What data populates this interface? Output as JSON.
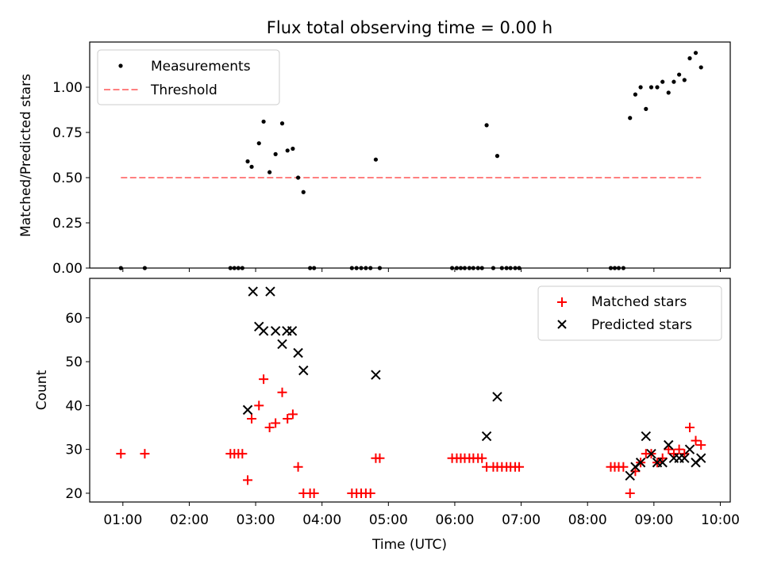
{
  "figure": {
    "title": "Flux total observing time = 0.00 h"
  },
  "colors": {
    "measurement": "#000000",
    "threshold": "#ff8080",
    "matched": "#ff0000",
    "predicted": "#000000"
  },
  "chart_data": [
    {
      "type": "scatter",
      "panel": "top",
      "ylabel": "Matched/Predicted stars",
      "xlim": [
        0.5,
        10.15
      ],
      "ylim": [
        0,
        1.25
      ],
      "yticks": [
        0,
        0.25,
        0.5,
        0.75,
        1.0
      ],
      "ytick_labels": [
        "0.00",
        "0.25",
        "0.50",
        "0.75",
        "1.00"
      ],
      "legend_position": "upper left",
      "legend": [
        {
          "key": "measurements",
          "label": "Measurements"
        },
        {
          "key": "threshold",
          "label": "Threshold"
        }
      ],
      "threshold": {
        "value": 0.5,
        "x": [
          0.97,
          9.71
        ]
      },
      "measurements": {
        "x": [
          0.97,
          1.33,
          2.62,
          2.68,
          2.74,
          2.8,
          2.88,
          2.94,
          3.05,
          3.12,
          3.21,
          3.3,
          3.4,
          3.48,
          3.56,
          3.64,
          3.72,
          3.82,
          3.88,
          4.45,
          4.52,
          4.59,
          4.66,
          4.73,
          4.81,
          4.87,
          5.96,
          6.03,
          6.09,
          6.15,
          6.22,
          6.28,
          6.35,
          6.41,
          6.48,
          6.58,
          6.64,
          6.71,
          6.78,
          6.84,
          6.91,
          6.97,
          8.35,
          8.41,
          8.47,
          8.54,
          8.64,
          8.72,
          8.8,
          8.88,
          8.96,
          9.05,
          9.13,
          9.22,
          9.3,
          9.38,
          9.46,
          9.54,
          9.63,
          9.71
        ],
        "y": [
          0,
          0,
          0,
          0,
          0,
          0,
          0.59,
          0.56,
          0.69,
          0.81,
          0.53,
          0.63,
          0.8,
          0.65,
          0.66,
          0.5,
          0.42,
          0,
          0,
          0,
          0,
          0,
          0,
          0,
          0.6,
          0,
          0,
          0,
          0,
          0,
          0,
          0,
          0,
          0,
          0.79,
          0,
          0.62,
          0,
          0,
          0,
          0,
          0,
          0,
          0,
          0,
          0,
          0.83,
          0.96,
          1.0,
          0.88,
          1.0,
          1.0,
          1.03,
          0.97,
          1.03,
          1.07,
          1.04,
          1.16,
          1.19,
          1.11
        ]
      }
    },
    {
      "type": "scatter",
      "panel": "bottom",
      "xlabel": "Time (UTC)",
      "ylabel": "Count",
      "xlim": [
        0.5,
        10.15
      ],
      "ylim": [
        18,
        69
      ],
      "xticks": [
        1,
        2,
        3,
        4,
        5,
        6,
        7,
        8,
        9,
        10
      ],
      "xtick_labels": [
        "01:00",
        "02:00",
        "03:00",
        "04:00",
        "05:00",
        "06:00",
        "07:00",
        "08:00",
        "09:00",
        "10:00"
      ],
      "yticks": [
        20,
        30,
        40,
        50,
        60
      ],
      "ytick_labels": [
        "20",
        "30",
        "40",
        "50",
        "60"
      ],
      "legend_position": "upper right",
      "legend": [
        {
          "key": "matched",
          "label": "Matched stars"
        },
        {
          "key": "predicted",
          "label": "Predicted stars"
        }
      ],
      "matched": {
        "x": [
          0.97,
          1.33,
          2.62,
          2.68,
          2.74,
          2.8,
          2.88,
          2.94,
          3.05,
          3.12,
          3.21,
          3.3,
          3.4,
          3.48,
          3.56,
          3.64,
          3.72,
          3.82,
          3.88,
          4.45,
          4.52,
          4.59,
          4.66,
          4.73,
          4.81,
          4.87,
          5.96,
          6.03,
          6.09,
          6.15,
          6.22,
          6.28,
          6.35,
          6.41,
          6.48,
          6.58,
          6.64,
          6.71,
          6.78,
          6.84,
          6.91,
          6.97,
          8.35,
          8.41,
          8.47,
          8.54,
          8.64,
          8.72,
          8.8,
          8.88,
          8.96,
          9.05,
          9.13,
          9.22,
          9.3,
          9.38,
          9.46,
          9.54,
          9.63,
          9.71
        ],
        "y": [
          29,
          29,
          29,
          29,
          29,
          29,
          23,
          37,
          40,
          46,
          35,
          36,
          43,
          37,
          38,
          26,
          20,
          20,
          20,
          20,
          20,
          20,
          20,
          20,
          28,
          28,
          28,
          28,
          28,
          28,
          28,
          28,
          28,
          28,
          26,
          26,
          26,
          26,
          26,
          26,
          26,
          26,
          26,
          26,
          26,
          26,
          20,
          25,
          27,
          29,
          29,
          27,
          28,
          30,
          29,
          30,
          29,
          35,
          32,
          31
        ]
      },
      "predicted": {
        "x": [
          2.88,
          2.96,
          3.05,
          3.12,
          3.22,
          3.3,
          3.4,
          3.47,
          3.55,
          3.64,
          3.72,
          4.81,
          6.48,
          6.64,
          8.64,
          8.72,
          8.8,
          8.88,
          8.96,
          9.05,
          9.13,
          9.22,
          9.3,
          9.38,
          9.46,
          9.54,
          9.63,
          9.71
        ],
        "y": [
          39,
          66,
          58,
          57,
          66,
          57,
          54,
          57,
          57,
          52,
          48,
          47,
          33,
          42,
          24,
          26,
          27,
          33,
          29,
          27,
          27,
          31,
          28,
          28,
          28,
          30,
          27,
          28
        ]
      }
    }
  ]
}
